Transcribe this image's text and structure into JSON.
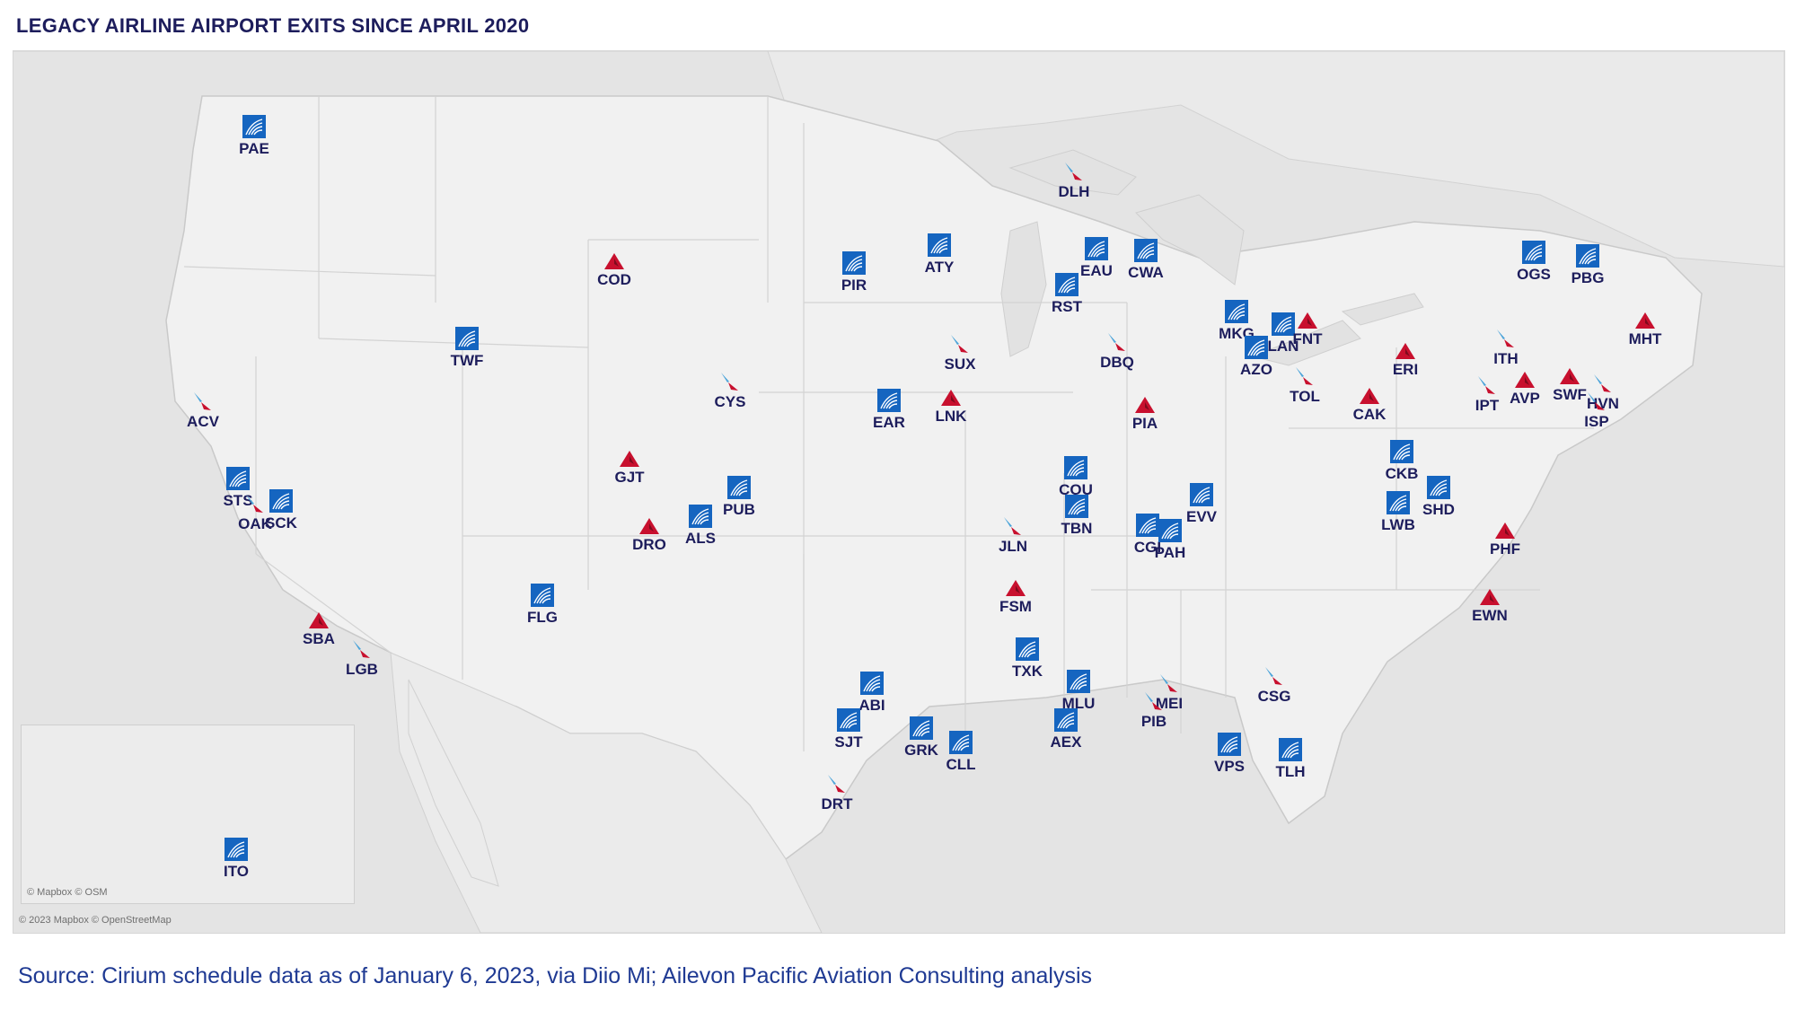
{
  "title": "LEGACY AIRLINE AIRPORT EXITS SINCE APRIL 2020",
  "source": "Source: Cirium schedule data as of January 6, 2023, via Diio Mi; Ailevon Pacific Aviation Consulting analysis",
  "attribution_main": "© 2023 Mapbox © OpenStreetMap",
  "attribution_inset": "© Mapbox © OSM",
  "colors": {
    "united": "#1565c0",
    "delta": "#c8102e",
    "american_blue": "#4aa3d9",
    "american_red": "#c8102e",
    "label": "#1d1d5c"
  },
  "airports": [
    {
      "code": "PAE",
      "airline": "united"
    },
    {
      "code": "COD",
      "airline": "delta"
    },
    {
      "code": "PIR",
      "airline": "united"
    },
    {
      "code": "ATY",
      "airline": "united"
    },
    {
      "code": "DLH",
      "airline": "american"
    },
    {
      "code": "EAU",
      "airline": "united"
    },
    {
      "code": "CWA",
      "airline": "united"
    },
    {
      "code": "RST",
      "airline": "united"
    },
    {
      "code": "OGS",
      "airline": "united"
    },
    {
      "code": "PBG",
      "airline": "united"
    },
    {
      "code": "TWF",
      "airline": "united"
    },
    {
      "code": "ACV",
      "airline": "american"
    },
    {
      "code": "CYS",
      "airline": "american"
    },
    {
      "code": "SUX",
      "airline": "american"
    },
    {
      "code": "DBQ",
      "airline": "american"
    },
    {
      "code": "MKG",
      "airline": "united"
    },
    {
      "code": "LAN",
      "airline": "united"
    },
    {
      "code": "FNT",
      "airline": "delta"
    },
    {
      "code": "AZO",
      "airline": "united"
    },
    {
      "code": "TOL",
      "airline": "american"
    },
    {
      "code": "ERI",
      "airline": "delta"
    },
    {
      "code": "ITH",
      "airline": "american"
    },
    {
      "code": "MHT",
      "airline": "delta"
    },
    {
      "code": "IPT",
      "airline": "american"
    },
    {
      "code": "AVP",
      "airline": "delta"
    },
    {
      "code": "SWF",
      "airline": "delta"
    },
    {
      "code": "HVN",
      "airline": "american"
    },
    {
      "code": "ISP",
      "airline": "american"
    },
    {
      "code": "EAR",
      "airline": "united"
    },
    {
      "code": "LNK",
      "airline": "delta"
    },
    {
      "code": "PIA",
      "airline": "delta"
    },
    {
      "code": "CAK",
      "airline": "delta"
    },
    {
      "code": "GJT",
      "airline": "delta"
    },
    {
      "code": "COU",
      "airline": "united"
    },
    {
      "code": "CKB",
      "airline": "united"
    },
    {
      "code": "STS",
      "airline": "united"
    },
    {
      "code": "OAK",
      "airline": "american"
    },
    {
      "code": "SCK",
      "airline": "united"
    },
    {
      "code": "PUB",
      "airline": "united"
    },
    {
      "code": "ALS",
      "airline": "united"
    },
    {
      "code": "TBN",
      "airline": "united"
    },
    {
      "code": "EVV",
      "airline": "united"
    },
    {
      "code": "LWB",
      "airline": "united"
    },
    {
      "code": "SHD",
      "airline": "united"
    },
    {
      "code": "DRO",
      "airline": "delta"
    },
    {
      "code": "JLN",
      "airline": "american"
    },
    {
      "code": "CGI",
      "airline": "united"
    },
    {
      "code": "PAH",
      "airline": "united"
    },
    {
      "code": "PHF",
      "airline": "delta"
    },
    {
      "code": "FLG",
      "airline": "united"
    },
    {
      "code": "FSM",
      "airline": "delta"
    },
    {
      "code": "EWN",
      "airline": "delta"
    },
    {
      "code": "SBA",
      "airline": "delta"
    },
    {
      "code": "LGB",
      "airline": "american"
    },
    {
      "code": "MLU",
      "airline": "united"
    },
    {
      "code": "TXK",
      "airline": "united"
    },
    {
      "code": "ABI",
      "airline": "united"
    },
    {
      "code": "MEI",
      "airline": "american"
    },
    {
      "code": "CSG",
      "airline": "american"
    },
    {
      "code": "SJT",
      "airline": "united"
    },
    {
      "code": "GRK",
      "airline": "united"
    },
    {
      "code": "CLL",
      "airline": "united"
    },
    {
      "code": "AEX",
      "airline": "united"
    },
    {
      "code": "PIB",
      "airline": "american"
    },
    {
      "code": "VPS",
      "airline": "united"
    },
    {
      "code": "TLH",
      "airline": "united"
    },
    {
      "code": "DRT",
      "airline": "american"
    },
    {
      "code": "ITO",
      "airline": "united"
    }
  ]
}
